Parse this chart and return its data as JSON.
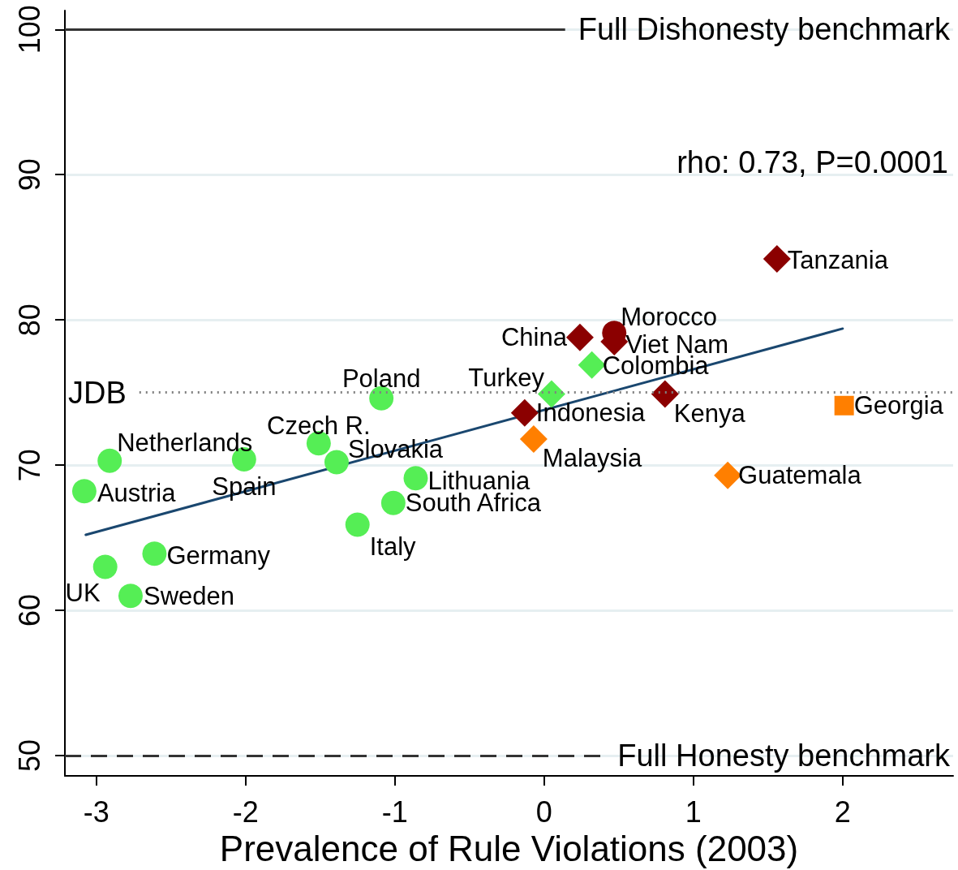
{
  "chart_data": {
    "type": "scatter",
    "xlabel": "Prevalence of Rule Violations (2003)",
    "series": [
      {
        "type": "line",
        "color": "#1a476f",
        "marker": "none",
        "line_style": "solid",
        "x": [
          -3.07,
          2.0
        ],
        "values": [
          65.2,
          79.4
        ]
      },
      {
        "color": "#55ee55",
        "marker": "circle",
        "x": [
          -3.08,
          -2.91,
          -2.01,
          -1.51,
          -1.39,
          -1.09,
          -0.86,
          -1.01,
          -1.25,
          -2.61,
          -2.94,
          -2.77
        ],
        "values": [
          68.2,
          70.3,
          70.4,
          71.5,
          70.2,
          74.6,
          69.1,
          67.4,
          65.9,
          63.9,
          63.0,
          61.0
        ]
      },
      {
        "color": "#55ee55",
        "marker": "diamond",
        "x": [
          0.32,
          0.05
        ],
        "values": [
          76.9,
          74.9
        ]
      },
      {
        "color": "#8b0000",
        "marker": "diamond",
        "x": [
          1.56,
          0.24,
          0.47,
          -0.13,
          0.81
        ],
        "values": [
          84.2,
          78.8,
          78.5,
          73.6,
          74.9
        ]
      },
      {
        "color": "#8b0000",
        "marker": "circle",
        "x": [
          0.47
        ],
        "values": [
          79.1
        ]
      },
      {
        "color": "#ff7f00",
        "marker": "diamond",
        "x": [
          -0.07,
          1.23
        ],
        "values": [
          71.8,
          69.3
        ]
      },
      {
        "color": "#ff7f00",
        "marker": "square",
        "x": [
          2.01
        ],
        "values": [
          74.1
        ]
      }
    ],
    "xlim": [
      -3.21,
      2.74
    ],
    "xticks": [
      -3,
      -2,
      -1,
      0,
      1,
      2
    ],
    "ylim": [
      48.6,
      101.3
    ],
    "yticks": [
      50,
      60,
      70,
      80,
      90,
      100
    ],
    "grid": "y",
    "ref_lines": [
      {
        "axis": "y",
        "value": 100,
        "label": "Full Dishonesty benchmark",
        "color": "#333333",
        "line_style": "solid"
      },
      {
        "axis": "y",
        "value": 75,
        "label": "JDB",
        "color": "#808080",
        "line_style": "dotted"
      },
      {
        "axis": "y",
        "value": 50,
        "label": "Full Honesty benchmark",
        "color": "#333333",
        "line_style": "dashed"
      }
    ],
    "annotations": [
      {
        "text": "Austria",
        "x": -3.08,
        "y": 68.2
      },
      {
        "text": "Netherlands",
        "x": -2.91,
        "y": 70.3
      },
      {
        "text": "Spain",
        "x": -2.01,
        "y": 70.4
      },
      {
        "text": "Czech R.",
        "x": -1.51,
        "y": 71.5
      },
      {
        "text": "Slovakia",
        "x": -1.39,
        "y": 70.2
      },
      {
        "text": "Poland",
        "x": -1.09,
        "y": 74.6
      },
      {
        "text": "Lithuania",
        "x": -0.86,
        "y": 69.1
      },
      {
        "text": "South Africa",
        "x": -1.01,
        "y": 67.4
      },
      {
        "text": "Italy",
        "x": -1.25,
        "y": 65.9
      },
      {
        "text": "Germany",
        "x": -2.61,
        "y": 63.9
      },
      {
        "text": "UK",
        "x": -2.94,
        "y": 63.0
      },
      {
        "text": "Sweden",
        "x": -2.77,
        "y": 61.0
      },
      {
        "text": "Tanzania",
        "x": 1.56,
        "y": 84.2
      },
      {
        "text": "China",
        "x": 0.24,
        "y": 78.8
      },
      {
        "text": "Morocco",
        "x": 0.47,
        "y": 79.1
      },
      {
        "text": "Viet Nam",
        "x": 0.47,
        "y": 78.5
      },
      {
        "text": "Colombia",
        "x": 0.32,
        "y": 76.9
      },
      {
        "text": "Turkey",
        "x": 0.05,
        "y": 74.9
      },
      {
        "text": "Indonesia",
        "x": -0.13,
        "y": 73.6
      },
      {
        "text": "Malaysia",
        "x": -0.07,
        "y": 71.8
      },
      {
        "text": "Kenya",
        "x": 0.81,
        "y": 74.9
      },
      {
        "text": "Georgia",
        "x": 2.01,
        "y": 74.1
      },
      {
        "text": "Guatemala",
        "x": 1.23,
        "y": 69.3
      },
      "rho: 0.73, P=0.0001"
    ]
  }
}
